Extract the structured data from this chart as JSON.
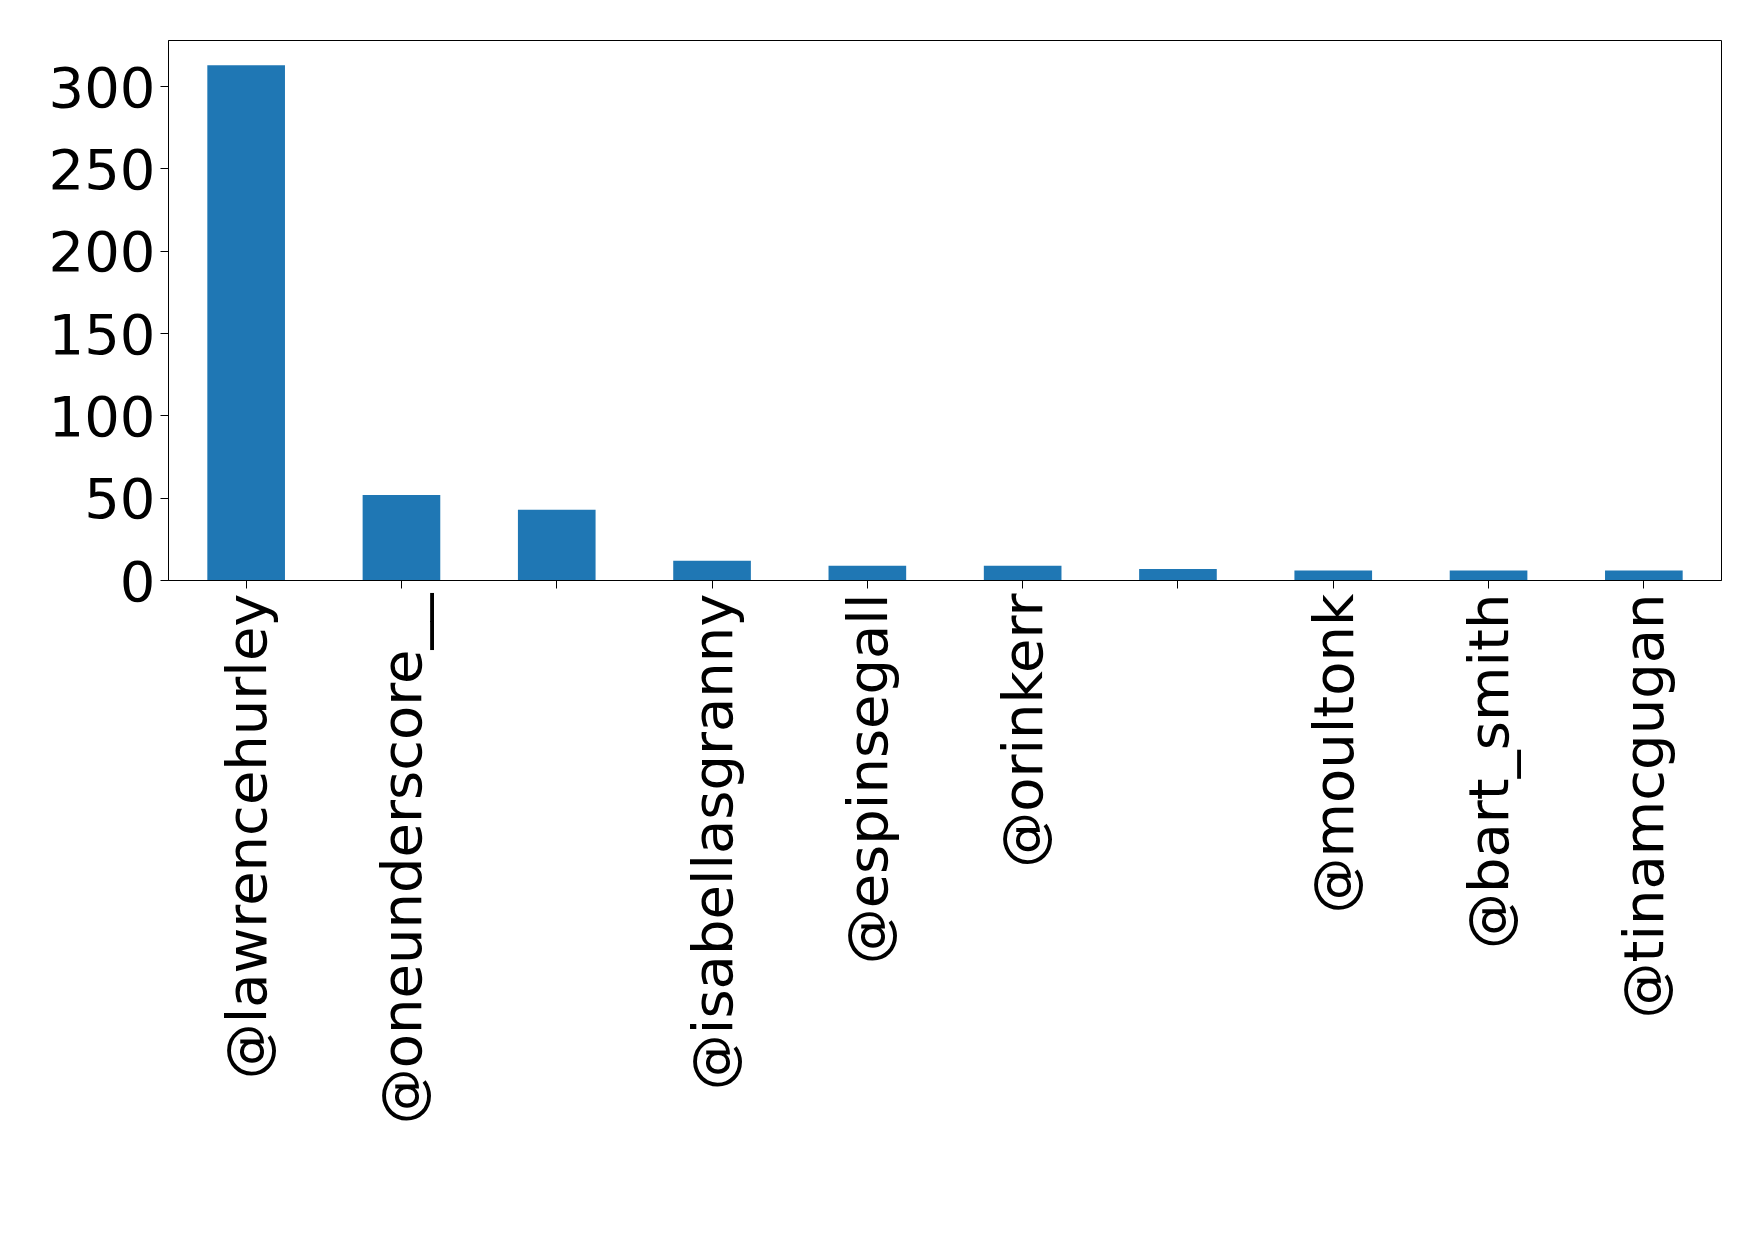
{
  "chart_data": {
    "type": "bar",
    "categories": [
      "@lawrencehurley",
      "@oneunderscore__",
      null,
      "@isabellasgranny",
      "@espinsegall",
      "@orinkerr",
      null,
      "@moultonk",
      "@bart_smith",
      "@tinamcgugan"
    ],
    "values": [
      313,
      52,
      43,
      12,
      9,
      9,
      7,
      6,
      6,
      6
    ],
    "color": "#1f77b4",
    "ylim": [
      0,
      328
    ],
    "yticks": [
      0,
      50,
      100,
      150,
      200,
      250,
      300
    ],
    "grid": false
  }
}
